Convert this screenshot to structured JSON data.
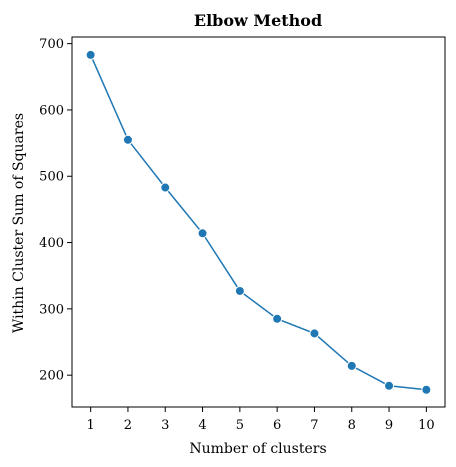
{
  "chart_data": {
    "type": "line",
    "title": "Elbow Method",
    "xlabel": "Number of clusters",
    "ylabel": "Within Cluster Sum of Squares",
    "x": [
      1,
      2,
      3,
      4,
      5,
      6,
      7,
      8,
      9,
      10
    ],
    "series": [
      {
        "values": [
          683,
          555,
          483,
          414,
          327,
          285,
          263,
          214,
          184,
          178
        ]
      }
    ],
    "xticks": [
      "1",
      "2",
      "3",
      "4",
      "5",
      "6",
      "7",
      "8",
      "9",
      "10"
    ],
    "yticks": [
      "200",
      "300",
      "400",
      "500",
      "600",
      "700"
    ],
    "xlim": [
      0.5,
      10.5
    ],
    "ylim": [
      152,
      710
    ],
    "grid": false,
    "legend": "none",
    "color": "#1f77b4",
    "marker": "circle"
  }
}
